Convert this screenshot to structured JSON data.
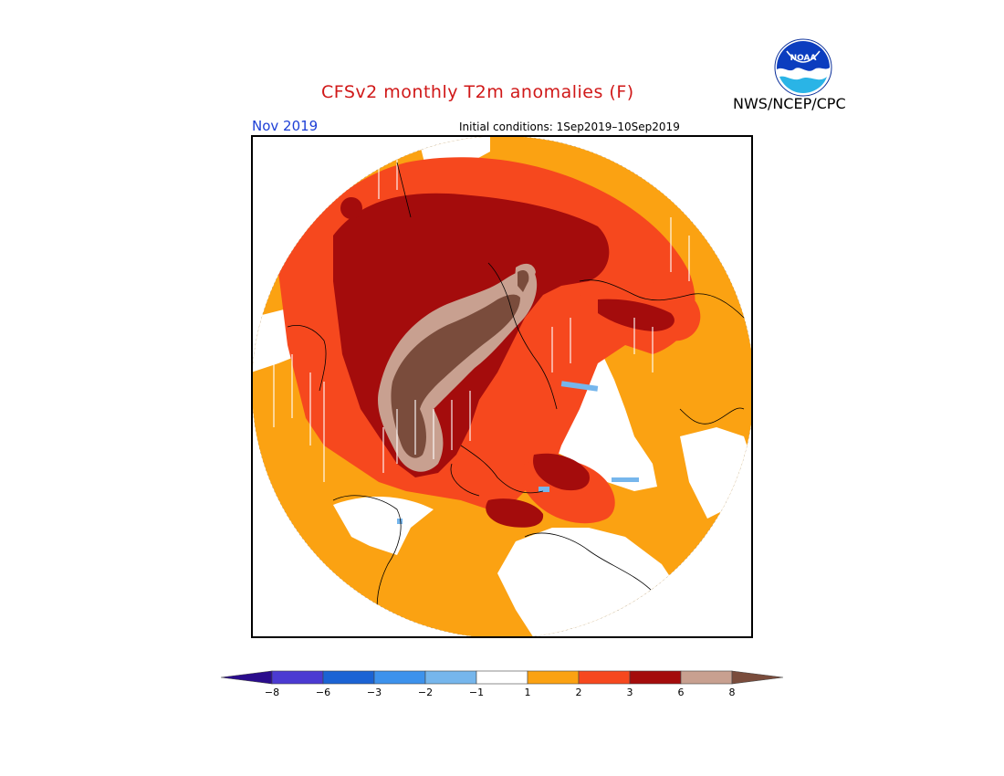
{
  "header": {
    "title": "CFSv2 monthly T2m anomalies (F)",
    "month": "Nov 2019",
    "initial_conditions": "Initial conditions: 1Sep2019–10Sep2019",
    "agency": "NWS/NCEP/CPC",
    "logo_text": "NOAA"
  },
  "map": {
    "projection": "north-polar-stereographic",
    "variable": "2m temperature anomaly",
    "units": "F"
  },
  "legend": {
    "bins": [
      {
        "color": "#2a0c8c",
        "upper": -8
      },
      {
        "color": "#4b3ad2",
        "upper": -6
      },
      {
        "color": "#1b63d4",
        "upper": -3
      },
      {
        "color": "#3d92ec",
        "upper": -2
      },
      {
        "color": "#76b6ec",
        "upper": -1
      },
      {
        "color": "#ffffff",
        "upper": 1
      },
      {
        "color": "#fba212",
        "upper": 2
      },
      {
        "color": "#f6481e",
        "upper": 3
      },
      {
        "color": "#a40c0c",
        "upper": 6
      },
      {
        "color": "#c8a090",
        "upper": 8
      },
      {
        "color": "#7a4c3c",
        "upper": null
      }
    ],
    "tick_labels": [
      "−8",
      "−6",
      "−3",
      "−2",
      "−1",
      "1",
      "2",
      "3",
      "6",
      "8"
    ]
  }
}
